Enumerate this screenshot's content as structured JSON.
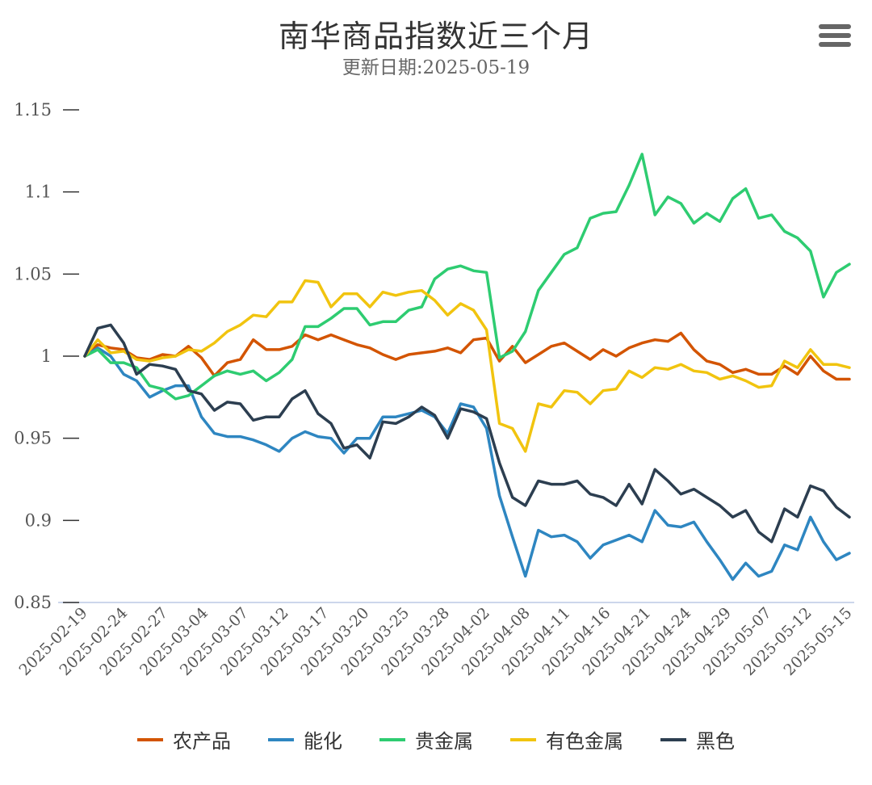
{
  "header": {
    "title": "南华商品指数近三个月",
    "subtitle": "更新日期:2025-05-19"
  },
  "toolbar": {
    "menu_icon": "hamburger-menu-icon"
  },
  "chart_data": {
    "type": "line",
    "title": "南华商品指数近三个月",
    "subtitle": "更新日期:2025-05-19",
    "ylim": [
      0.85,
      1.15
    ],
    "yticks": [
      "1.15",
      "1.1",
      "1.05",
      "1",
      "0.95",
      "0.9",
      "0.85"
    ],
    "ytick_values": [
      1.15,
      1.1,
      1.05,
      1.0,
      0.95,
      0.9,
      0.85
    ],
    "xtick_labels": [
      "2025-02-19",
      "2025-02-24",
      "2025-02-27",
      "2025-03-04",
      "2025-03-07",
      "2025-03-12",
      "2025-03-17",
      "2025-03-20",
      "2025-03-25",
      "2025-03-28",
      "2025-04-02",
      "2025-04-08",
      "2025-04-11",
      "2025-04-16",
      "2025-04-21",
      "2025-04-24",
      "2025-04-29",
      "2025-05-07",
      "2025-05-12",
      "2025-05-15"
    ],
    "legend_position": "bottom",
    "series": [
      {
        "name": "农产品",
        "color": "#D35400",
        "values": [
          1.0,
          1.007,
          1.005,
          1.004,
          0.999,
          0.998,
          1.001,
          1.0,
          1.006,
          0.999,
          0.988,
          0.996,
          0.998,
          1.01,
          1.004,
          1.004,
          1.006,
          1.013,
          1.01,
          1.013,
          1.01,
          1.007,
          1.005,
          1.001,
          0.998,
          1.001,
          1.002,
          1.003,
          1.005,
          1.002,
          1.01,
          1.011,
          0.997,
          1.006,
          0.996,
          1.001,
          1.006,
          1.008,
          1.003,
          0.998,
          1.004,
          1.0,
          1.005,
          1.008,
          1.01,
          1.009,
          1.014,
          1.004,
          0.997,
          0.995,
          0.99,
          0.992,
          0.989,
          0.989,
          0.994,
          0.989,
          1.0,
          0.991,
          0.986,
          0.986
        ]
      },
      {
        "name": "能化",
        "color": "#2E86C1",
        "values": [
          1.0,
          1.005,
          1.0,
          0.989,
          0.985,
          0.975,
          0.979,
          0.982,
          0.982,
          0.963,
          0.953,
          0.951,
          0.951,
          0.949,
          0.946,
          0.942,
          0.95,
          0.954,
          0.951,
          0.95,
          0.941,
          0.95,
          0.95,
          0.963,
          0.963,
          0.965,
          0.967,
          0.963,
          0.953,
          0.971,
          0.969,
          0.956,
          0.915,
          0.89,
          0.866,
          0.894,
          0.89,
          0.891,
          0.887,
          0.877,
          0.885,
          0.888,
          0.891,
          0.887,
          0.906,
          0.897,
          0.896,
          0.899,
          0.887,
          0.876,
          0.864,
          0.874,
          0.866,
          0.869,
          0.885,
          0.882,
          0.902,
          0.887,
          0.876,
          0.88
        ]
      },
      {
        "name": "贵金属",
        "color": "#2ECC71",
        "values": [
          1.0,
          1.004,
          0.996,
          0.996,
          0.993,
          0.982,
          0.98,
          0.974,
          0.976,
          0.982,
          0.988,
          0.991,
          0.989,
          0.991,
          0.985,
          0.99,
          0.998,
          1.018,
          1.018,
          1.023,
          1.029,
          1.029,
          1.019,
          1.021,
          1.021,
          1.028,
          1.03,
          1.047,
          1.053,
          1.055,
          1.052,
          1.051,
          0.999,
          1.003,
          1.015,
          1.04,
          1.051,
          1.062,
          1.066,
          1.084,
          1.087,
          1.088,
          1.104,
          1.123,
          1.086,
          1.097,
          1.093,
          1.081,
          1.087,
          1.082,
          1.096,
          1.102,
          1.084,
          1.086,
          1.076,
          1.072,
          1.064,
          1.036,
          1.051,
          1.056
        ]
      },
      {
        "name": "有色金属",
        "color": "#F1C40F",
        "values": [
          1.0,
          1.01,
          1.002,
          1.003,
          0.998,
          0.997,
          0.999,
          1.0,
          1.004,
          1.003,
          1.008,
          1.015,
          1.019,
          1.025,
          1.024,
          1.033,
          1.033,
          1.046,
          1.045,
          1.03,
          1.038,
          1.038,
          1.03,
          1.039,
          1.037,
          1.039,
          1.04,
          1.034,
          1.025,
          1.032,
          1.028,
          1.016,
          0.959,
          0.956,
          0.942,
          0.971,
          0.969,
          0.979,
          0.978,
          0.971,
          0.979,
          0.98,
          0.991,
          0.987,
          0.993,
          0.992,
          0.995,
          0.991,
          0.99,
          0.986,
          0.988,
          0.985,
          0.981,
          0.982,
          0.997,
          0.993,
          1.004,
          0.995,
          0.995,
          0.993
        ]
      },
      {
        "name": "黑色",
        "color": "#2C3E50",
        "values": [
          1.0,
          1.017,
          1.019,
          1.008,
          0.989,
          0.995,
          0.994,
          0.992,
          0.979,
          0.977,
          0.967,
          0.972,
          0.971,
          0.961,
          0.963,
          0.963,
          0.974,
          0.979,
          0.965,
          0.959,
          0.944,
          0.946,
          0.938,
          0.96,
          0.959,
          0.963,
          0.969,
          0.964,
          0.95,
          0.968,
          0.966,
          0.962,
          0.935,
          0.914,
          0.909,
          0.924,
          0.922,
          0.922,
          0.924,
          0.916,
          0.914,
          0.909,
          0.922,
          0.91,
          0.931,
          0.924,
          0.916,
          0.919,
          0.914,
          0.909,
          0.902,
          0.906,
          0.893,
          0.887,
          0.907,
          0.902,
          0.921,
          0.918,
          0.908,
          0.902
        ]
      }
    ]
  }
}
